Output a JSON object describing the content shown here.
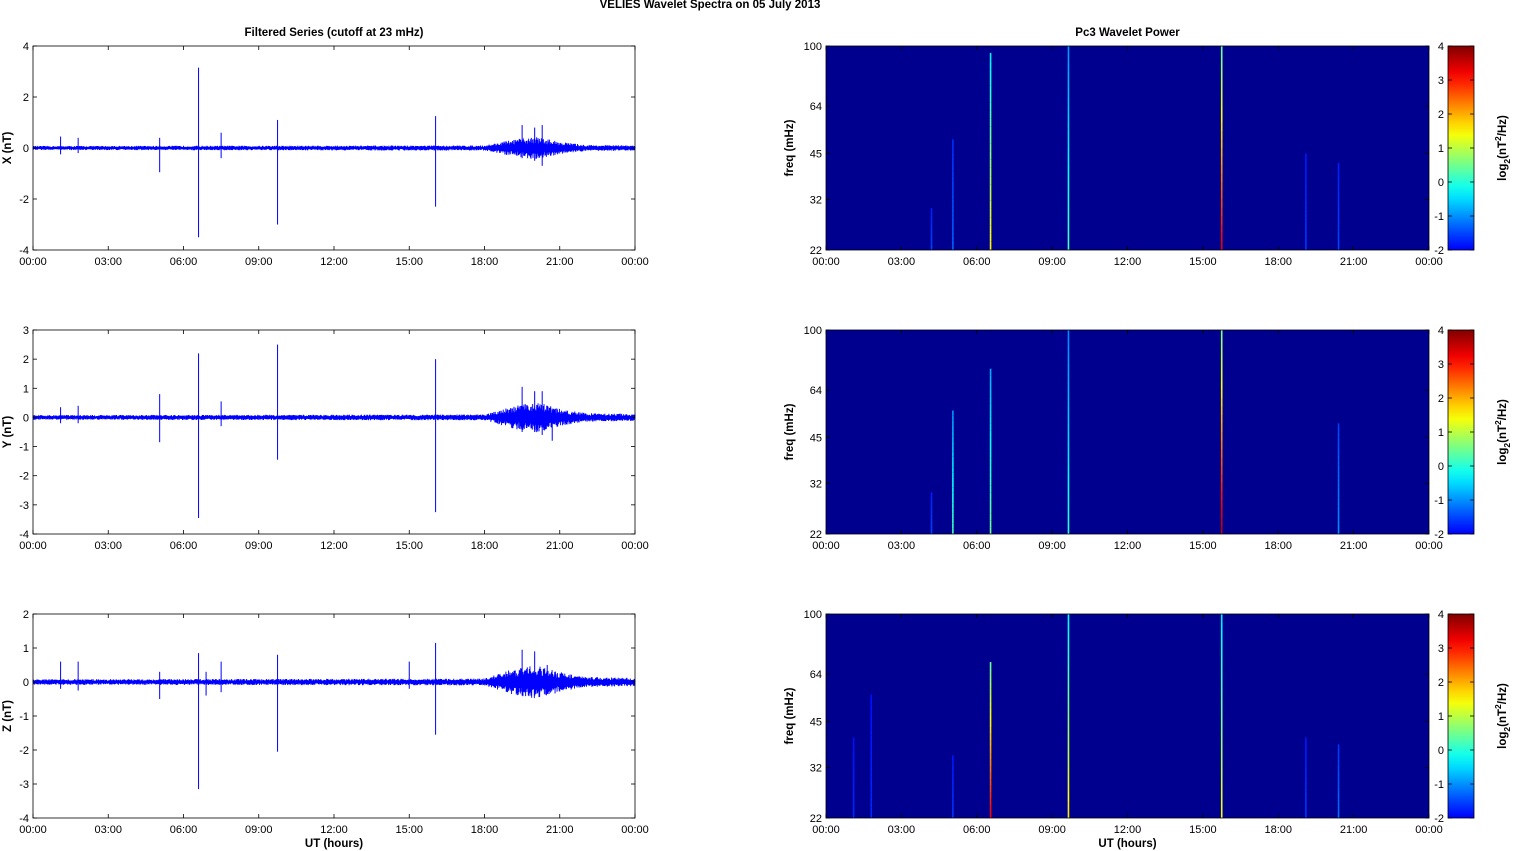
{
  "suptitle": "VELIES Wavelet Spectra on 05 July      2013",
  "colors": {
    "series": "#0000ff",
    "spectrum_bg": "#00008f"
  },
  "chart_data": [
    {
      "type": "line",
      "title": "Filtered Series (cutoff at 23 mHz)",
      "ylabel": "X (nT)",
      "xlabel": "",
      "ylim": [
        -4,
        4
      ],
      "yticks": [
        "4",
        "2",
        "0",
        "-2",
        "-4"
      ],
      "xlim": [
        0,
        24
      ],
      "xticks": [
        "00:00",
        "03:00",
        "06:00",
        "09:00",
        "12:00",
        "15:00",
        "18:00",
        "21:00",
        "00:00"
      ],
      "series": [
        {
          "values_description_note": "",
          "x": [
            1.1,
            1.8,
            5.05,
            6.6,
            7.5,
            9.75,
            16.05,
            19.5,
            20.0,
            20.3
          ],
          "spike_high": [
            0.45,
            0.4,
            0.4,
            3.15,
            0.6,
            1.1,
            1.25,
            0.9,
            0.8,
            0.9
          ],
          "spike_low": [
            -0.25,
            -0.2,
            -0.95,
            -3.5,
            -0.4,
            -3.0,
            -2.3,
            -0.4,
            -0.5,
            -0.7
          ],
          "noise_envelope": [
            [
              0,
              0.08
            ],
            [
              18,
              0.1
            ],
            [
              19,
              0.3
            ],
            [
              20,
              0.45
            ],
            [
              21,
              0.25
            ],
            [
              22,
              0.12
            ],
            [
              24,
              0.1
            ]
          ]
        }
      ]
    },
    {
      "type": "line",
      "ylabel": "Y (nT)",
      "xlabel": "",
      "ylim": [
        -4,
        3
      ],
      "yticks": [
        "3",
        "2",
        "1",
        "0",
        "-1",
        "-2",
        "-3",
        "-4"
      ],
      "xlim": [
        0,
        24
      ],
      "xticks": [
        "00:00",
        "03:00",
        "06:00",
        "09:00",
        "12:00",
        "15:00",
        "18:00",
        "21:00",
        "00:00"
      ],
      "series": [
        {
          "x": [
            1.1,
            1.8,
            5.05,
            6.6,
            7.5,
            9.75,
            16.05,
            19.5,
            20.0,
            20.3,
            20.7
          ],
          "spike_high": [
            0.35,
            0.4,
            0.8,
            2.2,
            0.55,
            2.5,
            2.0,
            1.05,
            0.9,
            0.9,
            0.3
          ],
          "spike_low": [
            -0.2,
            -0.2,
            -0.85,
            -3.45,
            -0.3,
            -1.45,
            -3.25,
            -0.5,
            -0.5,
            -0.6,
            -0.8
          ],
          "noise_envelope": [
            [
              0,
              0.08
            ],
            [
              18,
              0.1
            ],
            [
              19,
              0.35
            ],
            [
              20,
              0.55
            ],
            [
              21,
              0.3
            ],
            [
              22,
              0.15
            ],
            [
              24,
              0.12
            ]
          ]
        }
      ]
    },
    {
      "type": "line",
      "ylabel": "Z (nT)",
      "xlabel": "UT (hours)",
      "ylim": [
        -4,
        2
      ],
      "yticks": [
        "2",
        "1",
        "0",
        "-1",
        "-2",
        "-3",
        "-4"
      ],
      "xlim": [
        0,
        24
      ],
      "xticks": [
        "00:00",
        "03:00",
        "06:00",
        "09:00",
        "12:00",
        "15:00",
        "18:00",
        "21:00",
        "00:00"
      ],
      "series": [
        {
          "x": [
            1.1,
            1.8,
            5.05,
            6.6,
            6.9,
            7.5,
            9.75,
            15.0,
            16.05,
            19.5,
            20.0,
            20.5
          ],
          "spike_high": [
            0.6,
            0.6,
            0.3,
            0.85,
            0.3,
            0.6,
            0.8,
            0.6,
            1.15,
            0.95,
            0.9,
            0.5
          ],
          "spike_low": [
            -0.2,
            -0.25,
            -0.5,
            -3.15,
            -0.4,
            -0.3,
            -2.05,
            -0.2,
            -1.55,
            -0.4,
            -0.4,
            -0.3
          ],
          "noise_envelope": [
            [
              0,
              0.08
            ],
            [
              18,
              0.1
            ],
            [
              19,
              0.35
            ],
            [
              20,
              0.5
            ],
            [
              21,
              0.3
            ],
            [
              22,
              0.15
            ],
            [
              24,
              0.12
            ]
          ]
        }
      ]
    },
    {
      "type": "heatmap",
      "title": "Pc3 Wavelet Power",
      "ylabel": "freq (mHz)",
      "xlabel": "",
      "xlim": [
        0,
        24
      ],
      "xticks": [
        "00:00",
        "03:00",
        "06:00",
        "09:00",
        "12:00",
        "15:00",
        "18:00",
        "21:00",
        "00:00"
      ],
      "yticks": [
        "100",
        "64",
        "45",
        "32",
        "22"
      ],
      "ylim": [
        22,
        100
      ],
      "y_scale": "log",
      "colorbar": {
        "label_base": "log",
        "label_sub": "2",
        "label_tail": "(nT",
        "label_sup": "2",
        "label_end": "/Hz)",
        "ticks": [
          "4",
          "3",
          "2",
          "1",
          "0",
          "-1",
          "-2"
        ],
        "range": [
          -2,
          4
        ]
      },
      "streaks": [
        {
          "t": 4.2,
          "fmax": 30,
          "power": -1.5
        },
        {
          "t": 5.05,
          "fmax": 50,
          "power": -1.3
        },
        {
          "t": 6.55,
          "fmax": 95,
          "power": 1.5
        },
        {
          "t": 9.65,
          "fmax": 100,
          "power": 0.2
        },
        {
          "t": 15.75,
          "fmax": 100,
          "power": 3.3
        },
        {
          "t": 19.1,
          "fmax": 45,
          "power": -1.6
        },
        {
          "t": 20.4,
          "fmax": 42,
          "power": -1.5
        }
      ]
    },
    {
      "type": "heatmap",
      "ylabel": "freq (mHz)",
      "xlabel": "",
      "xlim": [
        0,
        24
      ],
      "xticks": [
        "00:00",
        "03:00",
        "06:00",
        "09:00",
        "12:00",
        "15:00",
        "18:00",
        "21:00",
        "00:00"
      ],
      "yticks": [
        "100",
        "64",
        "45",
        "32",
        "22"
      ],
      "ylim": [
        22,
        100
      ],
      "y_scale": "log",
      "colorbar": {
        "label_base": "log",
        "label_sub": "2",
        "label_tail": "(nT",
        "label_sup": "2",
        "label_end": "/Hz)",
        "ticks": [
          "4",
          "3",
          "2",
          "1",
          "0",
          "-1",
          "-2"
        ],
        "range": [
          -2,
          4
        ]
      },
      "streaks": [
        {
          "t": 4.2,
          "fmax": 30,
          "power": -1.5
        },
        {
          "t": 5.05,
          "fmax": 55,
          "power": 0.2
        },
        {
          "t": 6.55,
          "fmax": 75,
          "power": 0.5
        },
        {
          "t": 9.65,
          "fmax": 100,
          "power": 0.0
        },
        {
          "t": 15.75,
          "fmax": 100,
          "power": 3.6
        },
        {
          "t": 20.4,
          "fmax": 50,
          "power": -1.0
        }
      ]
    },
    {
      "type": "heatmap",
      "ylabel": "freq (mHz)",
      "xlabel": "UT (hours)",
      "xlim": [
        0,
        24
      ],
      "xticks": [
        "00:00",
        "03:00",
        "06:00",
        "09:00",
        "12:00",
        "15:00",
        "18:00",
        "21:00",
        "00:00"
      ],
      "yticks": [
        "100",
        "64",
        "45",
        "32",
        "22"
      ],
      "ylim": [
        22,
        100
      ],
      "y_scale": "log",
      "colorbar": {
        "label_base": "log",
        "label_sub": "2",
        "label_tail": "(nT",
        "label_sup": "2",
        "label_end": "/Hz)",
        "ticks": [
          "4",
          "3",
          "2",
          "1",
          "0",
          "-1",
          "-2"
        ],
        "range": [
          -2,
          4
        ]
      },
      "streaks": [
        {
          "t": 1.1,
          "fmax": 40,
          "power": -1.7
        },
        {
          "t": 1.8,
          "fmax": 55,
          "power": -1.7
        },
        {
          "t": 5.05,
          "fmax": 35,
          "power": -1.6
        },
        {
          "t": 6.55,
          "fmax": 70,
          "power": 3.2
        },
        {
          "t": 9.65,
          "fmax": 100,
          "power": 1.6
        },
        {
          "t": 15.75,
          "fmax": 100,
          "power": 1.4
        },
        {
          "t": 19.1,
          "fmax": 40,
          "power": -1.6
        },
        {
          "t": 20.4,
          "fmax": 38,
          "power": -1.2
        }
      ]
    }
  ]
}
